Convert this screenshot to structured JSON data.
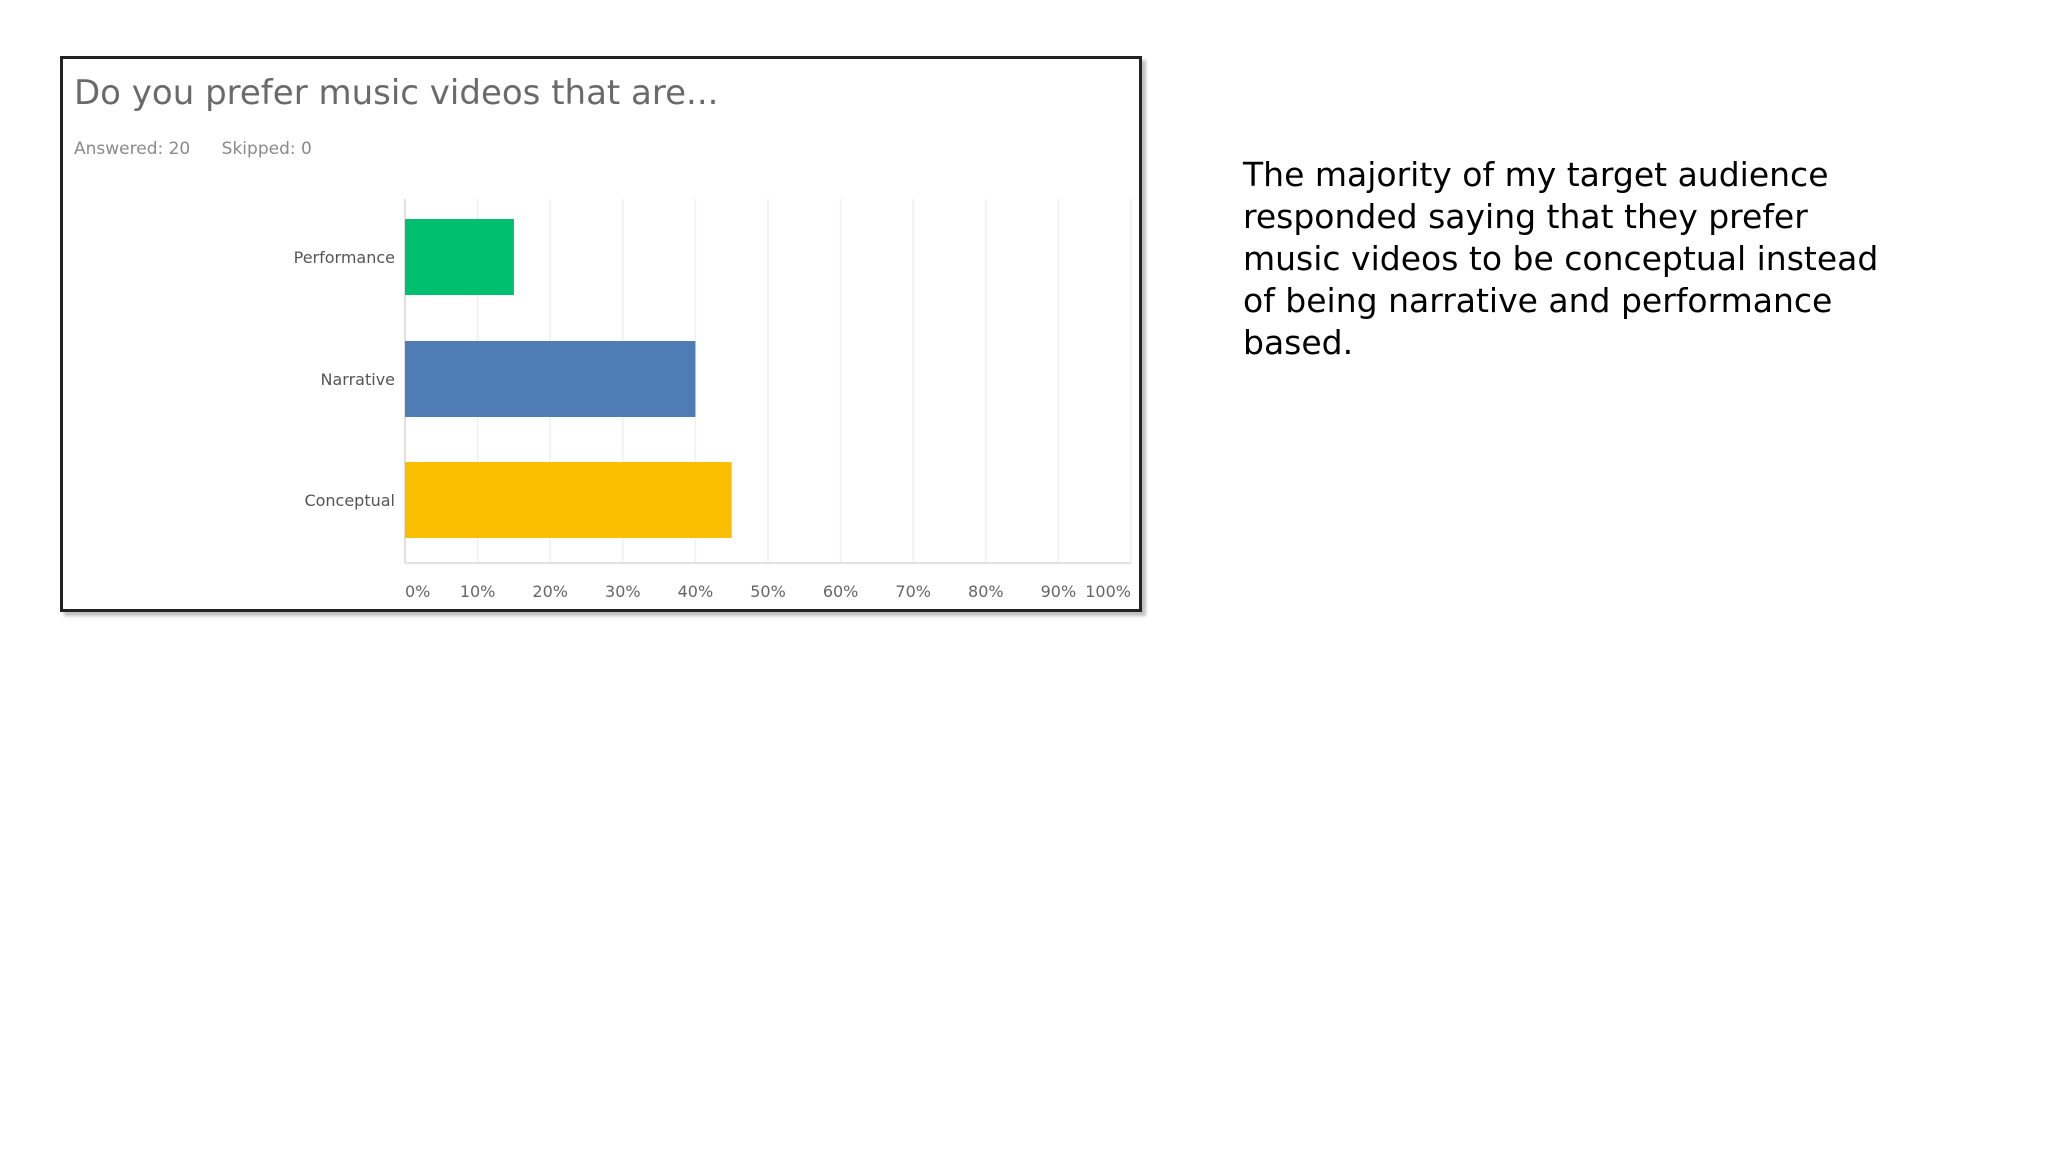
{
  "survey": {
    "question": "Do you prefer music videos that are...",
    "answered": "Answered: 20",
    "skipped": "Skipped: 0"
  },
  "summary": {
    "text": "The majority of my target audience responded saying that they prefer music videos to be conceptual instead of being narrative and performance based."
  },
  "chart_data": {
    "type": "bar",
    "orientation": "horizontal",
    "categories": [
      "Performance",
      "Narrative",
      "Conceptual"
    ],
    "values": [
      15,
      40,
      45
    ],
    "colors": [
      "#00bf6f",
      "#507cb6",
      "#f9be00"
    ],
    "xlim": [
      0,
      100
    ],
    "xticks": [
      "0%",
      "10%",
      "20%",
      "30%",
      "40%",
      "50%",
      "60%",
      "70%",
      "80%",
      "90%",
      "100%"
    ],
    "grid": true
  }
}
